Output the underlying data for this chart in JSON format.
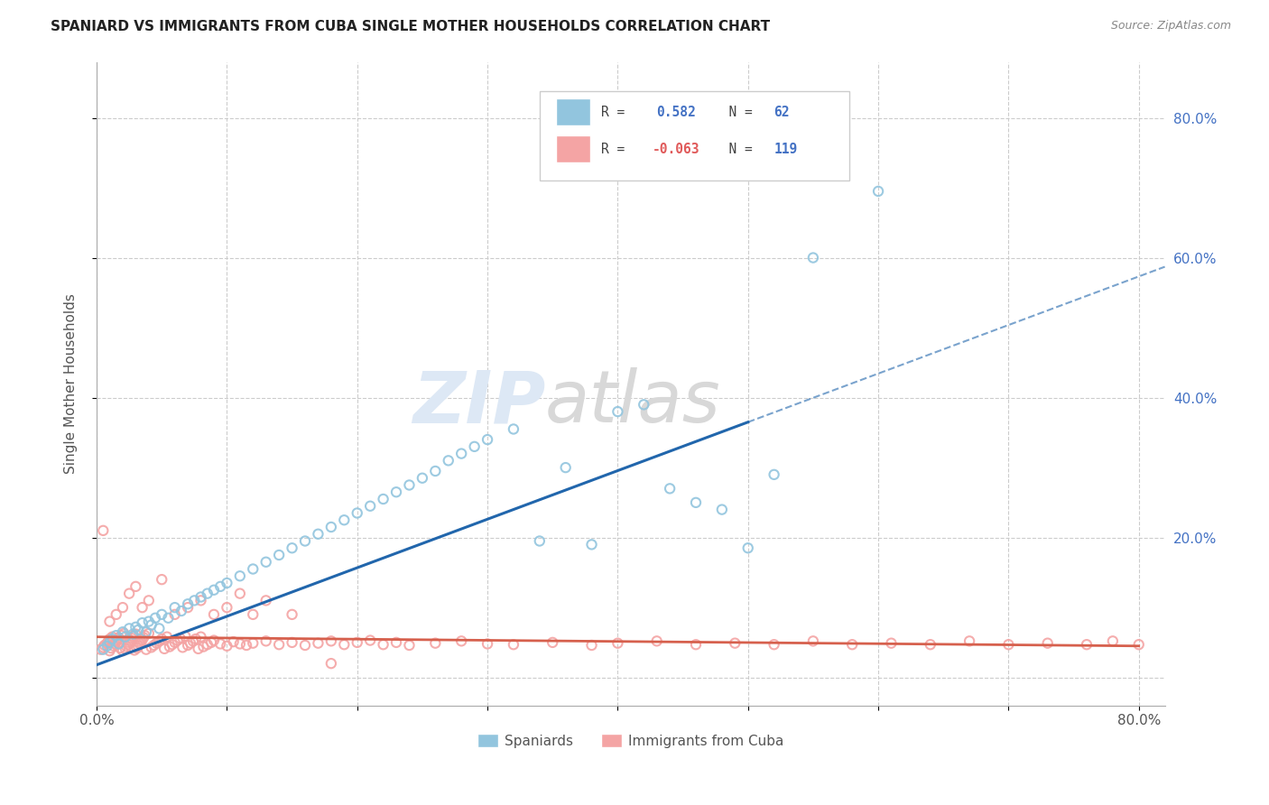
{
  "title": "SPANIARD VS IMMIGRANTS FROM CUBA SINGLE MOTHER HOUSEHOLDS CORRELATION CHART",
  "source": "Source: ZipAtlas.com",
  "ylabel": "Single Mother Households",
  "xlim": [
    0.0,
    0.82
  ],
  "ylim": [
    -0.04,
    0.88
  ],
  "xtick_positions": [
    0.0,
    0.1,
    0.2,
    0.3,
    0.4,
    0.5,
    0.6,
    0.7,
    0.8
  ],
  "xtick_labels": [
    "0.0%",
    "",
    "",
    "",
    "",
    "",
    "",
    "",
    "80.0%"
  ],
  "ytick_positions": [
    0.0,
    0.2,
    0.4,
    0.6,
    0.8
  ],
  "ytick_labels": [
    "",
    "20.0%",
    "40.0%",
    "60.0%",
    "80.0%"
  ],
  "spaniards_color": "#92c5de",
  "cuba_color": "#f4a4a4",
  "trend_blue": "#2166ac",
  "trend_pink": "#d6604d",
  "legend_label1": "Spaniards",
  "legend_label2": "Immigrants from Cuba",
  "background_color": "#ffffff",
  "spaniards_x": [
    0.005,
    0.008,
    0.01,
    0.012,
    0.015,
    0.017,
    0.02,
    0.022,
    0.025,
    0.028,
    0.03,
    0.032,
    0.035,
    0.038,
    0.04,
    0.042,
    0.045,
    0.048,
    0.05,
    0.055,
    0.06,
    0.065,
    0.07,
    0.075,
    0.08,
    0.085,
    0.09,
    0.095,
    0.1,
    0.11,
    0.12,
    0.13,
    0.14,
    0.15,
    0.16,
    0.17,
    0.18,
    0.19,
    0.2,
    0.21,
    0.22,
    0.23,
    0.24,
    0.25,
    0.26,
    0.27,
    0.28,
    0.29,
    0.3,
    0.32,
    0.34,
    0.36,
    0.38,
    0.4,
    0.42,
    0.44,
    0.46,
    0.48,
    0.5,
    0.52,
    0.55,
    0.6
  ],
  "spaniards_y": [
    0.04,
    0.045,
    0.05,
    0.055,
    0.06,
    0.048,
    0.065,
    0.058,
    0.07,
    0.062,
    0.072,
    0.068,
    0.078,
    0.065,
    0.08,
    0.075,
    0.085,
    0.07,
    0.09,
    0.085,
    0.1,
    0.095,
    0.105,
    0.11,
    0.115,
    0.12,
    0.125,
    0.13,
    0.135,
    0.145,
    0.155,
    0.165,
    0.175,
    0.185,
    0.195,
    0.205,
    0.215,
    0.225,
    0.235,
    0.245,
    0.255,
    0.265,
    0.275,
    0.285,
    0.295,
    0.31,
    0.32,
    0.33,
    0.34,
    0.355,
    0.195,
    0.3,
    0.19,
    0.38,
    0.39,
    0.27,
    0.25,
    0.24,
    0.185,
    0.29,
    0.6,
    0.695
  ],
  "cuba_x": [
    0.003,
    0.005,
    0.006,
    0.008,
    0.009,
    0.01,
    0.01,
    0.011,
    0.012,
    0.013,
    0.014,
    0.015,
    0.016,
    0.017,
    0.018,
    0.019,
    0.02,
    0.021,
    0.022,
    0.023,
    0.024,
    0.025,
    0.026,
    0.027,
    0.028,
    0.029,
    0.03,
    0.031,
    0.032,
    0.033,
    0.034,
    0.035,
    0.036,
    0.037,
    0.038,
    0.04,
    0.042,
    0.044,
    0.046,
    0.048,
    0.05,
    0.052,
    0.054,
    0.056,
    0.058,
    0.06,
    0.062,
    0.064,
    0.066,
    0.068,
    0.07,
    0.072,
    0.074,
    0.076,
    0.078,
    0.08,
    0.082,
    0.085,
    0.088,
    0.09,
    0.095,
    0.1,
    0.105,
    0.11,
    0.115,
    0.12,
    0.13,
    0.14,
    0.15,
    0.16,
    0.17,
    0.18,
    0.19,
    0.2,
    0.21,
    0.22,
    0.23,
    0.24,
    0.26,
    0.28,
    0.3,
    0.32,
    0.35,
    0.38,
    0.4,
    0.43,
    0.46,
    0.49,
    0.52,
    0.55,
    0.58,
    0.61,
    0.64,
    0.67,
    0.7,
    0.73,
    0.76,
    0.78,
    0.8,
    0.005,
    0.01,
    0.015,
    0.02,
    0.025,
    0.03,
    0.035,
    0.04,
    0.05,
    0.06,
    0.07,
    0.08,
    0.09,
    0.1,
    0.11,
    0.12,
    0.13,
    0.15,
    0.18
  ],
  "cuba_y": [
    0.04,
    0.043,
    0.046,
    0.049,
    0.052,
    0.038,
    0.055,
    0.042,
    0.058,
    0.045,
    0.048,
    0.051,
    0.054,
    0.057,
    0.042,
    0.06,
    0.038,
    0.063,
    0.041,
    0.044,
    0.047,
    0.05,
    0.053,
    0.056,
    0.059,
    0.039,
    0.062,
    0.042,
    0.045,
    0.048,
    0.051,
    0.054,
    0.057,
    0.06,
    0.04,
    0.063,
    0.043,
    0.046,
    0.049,
    0.052,
    0.055,
    0.041,
    0.058,
    0.044,
    0.047,
    0.05,
    0.053,
    0.056,
    0.043,
    0.059,
    0.046,
    0.049,
    0.052,
    0.055,
    0.041,
    0.058,
    0.044,
    0.047,
    0.05,
    0.053,
    0.048,
    0.045,
    0.051,
    0.048,
    0.046,
    0.049,
    0.052,
    0.047,
    0.05,
    0.046,
    0.049,
    0.052,
    0.047,
    0.05,
    0.053,
    0.047,
    0.05,
    0.046,
    0.049,
    0.052,
    0.048,
    0.047,
    0.05,
    0.046,
    0.049,
    0.052,
    0.047,
    0.049,
    0.047,
    0.052,
    0.047,
    0.049,
    0.047,
    0.052,
    0.047,
    0.049,
    0.047,
    0.052,
    0.047,
    0.21,
    0.08,
    0.09,
    0.1,
    0.12,
    0.13,
    0.1,
    0.11,
    0.14,
    0.09,
    0.1,
    0.11,
    0.09,
    0.1,
    0.12,
    0.09,
    0.11,
    0.09,
    0.02
  ]
}
